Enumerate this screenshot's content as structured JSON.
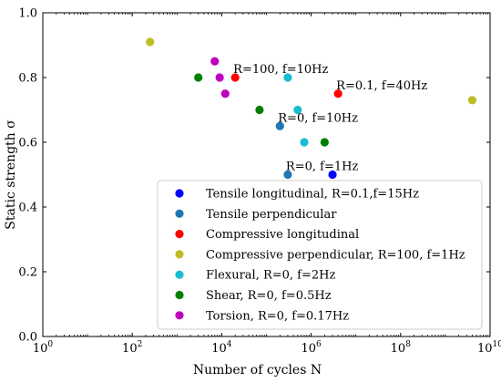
{
  "chart_data": {
    "type": "scatter",
    "xlabel": "Number of cycles N",
    "ylabel": "Static strength σ",
    "xscale": "log",
    "xlim": [
      1,
      10000000000
    ],
    "ylim": [
      0.0,
      1.0
    ],
    "xticks": [
      {
        "value": 1,
        "base": "10",
        "exp": "0"
      },
      {
        "value": 100,
        "base": "10",
        "exp": "2"
      },
      {
        "value": 10000,
        "base": "10",
        "exp": "4"
      },
      {
        "value": 1000000,
        "base": "10",
        "exp": "6"
      },
      {
        "value": 100000000,
        "base": "10",
        "exp": "8"
      },
      {
        "value": 10000000000,
        "base": "10",
        "exp": "10"
      }
    ],
    "yticks": [
      {
        "value": 0.0,
        "label": "0.0"
      },
      {
        "value": 0.2,
        "label": "0.2"
      },
      {
        "value": 0.4,
        "label": "0.4"
      },
      {
        "value": 0.6,
        "label": "0.6"
      },
      {
        "value": 0.8,
        "label": "0.8"
      },
      {
        "value": 1.0,
        "label": "1.0"
      }
    ],
    "grid": false,
    "legend_position": "lower-right",
    "series": [
      {
        "name": "Tensile longitudinal, R=0.1,f=15Hz",
        "color": "#0000ff",
        "points": [
          {
            "x": 3000000,
            "y": 0.5
          }
        ]
      },
      {
        "name": "Tensile perpendicular",
        "color": "#1f77b4",
        "points": [
          {
            "x": 200000,
            "y": 0.65
          },
          {
            "x": 300000,
            "y": 0.5
          }
        ]
      },
      {
        "name": "Compressive longitudinal",
        "color": "#ff0000",
        "points": [
          {
            "x": 20000,
            "y": 0.8
          },
          {
            "x": 4000000,
            "y": 0.75
          }
        ]
      },
      {
        "name": "Compressive perpendicular, R=100, f=1Hz",
        "color": "#bcbd22",
        "points": [
          {
            "x": 250,
            "y": 0.91
          },
          {
            "x": 4000000000,
            "y": 0.73
          }
        ]
      },
      {
        "name": "Flexural, R=0, f=2Hz",
        "color": "#17becf",
        "points": [
          {
            "x": 300000,
            "y": 0.8
          },
          {
            "x": 500000,
            "y": 0.7
          },
          {
            "x": 700000,
            "y": 0.6
          }
        ]
      },
      {
        "name": "Shear, R=0, f=0.5Hz",
        "color": "#008000",
        "points": [
          {
            "x": 3000,
            "y": 0.8
          },
          {
            "x": 70000,
            "y": 0.7
          },
          {
            "x": 2000000,
            "y": 0.6
          }
        ]
      },
      {
        "name": "Torsion, R=0, f=0.17Hz",
        "color": "#bf00bf",
        "points": [
          {
            "x": 7000,
            "y": 0.85
          },
          {
            "x": 9000,
            "y": 0.8
          },
          {
            "x": 12000,
            "y": 0.75
          }
        ]
      }
    ],
    "annotations": [
      {
        "text": "R=100, f=10Hz",
        "x": 20000,
        "y": 0.8
      },
      {
        "text": "R=0.1, f=40Hz",
        "x": 4000000,
        "y": 0.75
      },
      {
        "text": "R=0, f=10Hz",
        "x": 200000,
        "y": 0.65
      },
      {
        "text": "R=0, f=1Hz",
        "x": 300000,
        "y": 0.5
      }
    ]
  }
}
